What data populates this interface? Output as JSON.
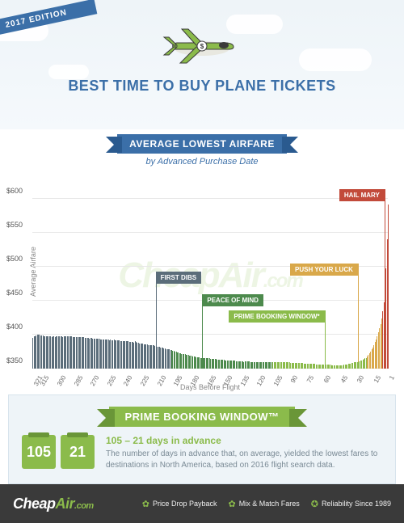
{
  "edition": "2017 EDITION",
  "title": "BEST TIME TO BUY PLANE TICKETS",
  "subtitle": "AVERAGE LOWEST AIRFARE",
  "byline": "by Advanced Purchase Date",
  "watermark_main": "CheapAir",
  "watermark_suffix": ".com",
  "chart": {
    "type": "bar",
    "ylabel": "Average Airfare",
    "xlabel": "Days Before Flight",
    "ylim": [
      350,
      600
    ],
    "yticks": [
      350,
      400,
      450,
      500,
      550,
      600
    ],
    "ytick_labels": [
      "$350",
      "$400",
      "$450",
      "$500",
      "$550",
      "$600"
    ],
    "xticks": [
      321,
      315,
      300,
      285,
      270,
      255,
      240,
      225,
      210,
      195,
      180,
      165,
      150,
      135,
      120,
      105,
      90,
      75,
      60,
      45,
      30,
      15,
      1
    ],
    "grid_color": "#e8e8e8",
    "zones": [
      {
        "name": "FIRST DIBS",
        "start": 321,
        "end": 197,
        "color": "#5b6d7a",
        "flag_x": 210,
        "flag_top": 120,
        "values": [
          395,
          398,
          398,
          399,
          400,
          400,
          400,
          399,
          399,
          399,
          398,
          398,
          398,
          398,
          398,
          398,
          398,
          397,
          398,
          398,
          397,
          398,
          398,
          398,
          398,
          398,
          398,
          397,
          398,
          398,
          398,
          398,
          398,
          398,
          398,
          398,
          397,
          397,
          397,
          397,
          397,
          397,
          397,
          396,
          396,
          396,
          396,
          395,
          395,
          395,
          395,
          394,
          395,
          395,
          394,
          394,
          394,
          394,
          394,
          394,
          394,
          393,
          393,
          393,
          393,
          393,
          393,
          393,
          393,
          392,
          393,
          392,
          392,
          393,
          392,
          392,
          392,
          392,
          392,
          391,
          391,
          391,
          391,
          390,
          390,
          390,
          390,
          389,
          389,
          389,
          389,
          388,
          390,
          389,
          388,
          388,
          387,
          387,
          387,
          387,
          386,
          386,
          386,
          386,
          385,
          385,
          385,
          384,
          384,
          384,
          383,
          383,
          382,
          382,
          382,
          381,
          381,
          381,
          380,
          380,
          379,
          379,
          379,
          378,
          377
        ]
      },
      {
        "name": "PEACE OF MIND",
        "start": 196,
        "end": 106,
        "color": "#4d8a4d",
        "flag_x": 168,
        "flag_top": 148,
        "values": [
          377,
          376,
          376,
          375,
          375,
          374,
          374,
          373,
          373,
          372,
          372,
          371,
          371,
          370,
          370,
          370,
          369,
          369,
          369,
          368,
          368,
          368,
          367,
          367,
          367,
          367,
          366,
          366,
          366,
          366,
          365,
          365,
          365,
          365,
          365,
          364,
          364,
          364,
          364,
          364,
          364,
          363,
          363,
          363,
          363,
          363,
          363,
          363,
          362,
          362,
          362,
          362,
          362,
          362,
          362,
          362,
          362,
          362,
          361,
          361,
          361,
          361,
          361,
          361,
          361,
          360,
          361,
          361,
          361,
          361,
          361,
          360,
          360,
          360,
          360,
          360,
          360,
          360,
          360,
          360,
          360,
          360,
          360,
          360,
          360,
          360,
          360,
          360,
          360,
          360,
          360
        ]
      },
      {
        "name": "PRIME BOOKING WINDOW*",
        "start": 105,
        "end": 21,
        "color": "#8bbb4b",
        "flag_x": 58,
        "flag_top": 168,
        "values": [
          360,
          360,
          359,
          359,
          359,
          359,
          359,
          359,
          359,
          359,
          359,
          359,
          359,
          359,
          359,
          359,
          358,
          358,
          358,
          358,
          358,
          358,
          358,
          358,
          358,
          358,
          358,
          358,
          357,
          357,
          357,
          357,
          357,
          357,
          357,
          357,
          357,
          357,
          357,
          356,
          356,
          356,
          356,
          356,
          356,
          356,
          356,
          356,
          356,
          356,
          356,
          356,
          356,
          355,
          355,
          355,
          355,
          355,
          355,
          355,
          355,
          355,
          355,
          355,
          356,
          356,
          356,
          356,
          357,
          357,
          357,
          358,
          358,
          359,
          359,
          359,
          360,
          360,
          361,
          362,
          362,
          363,
          364,
          365,
          366
        ]
      },
      {
        "name": "PUSH YOUR LUCK",
        "start": 20,
        "end": 7,
        "color": "#d9a84a",
        "flag_x": 28,
        "flag_top": 110,
        "values": [
          368,
          370,
          373,
          375,
          378,
          381,
          385,
          389,
          393,
          398,
          403,
          409,
          416,
          424
        ]
      },
      {
        "name": "HAIL MARY",
        "start": 6,
        "end": 1,
        "color": "#c24a3a",
        "flag_x": 4,
        "flag_top": 18,
        "values": [
          434,
          448,
          468,
          498,
          540,
          592
        ]
      }
    ]
  },
  "prime": {
    "ribbon": "PRIME BOOKING WINDOW™",
    "cal1": "105",
    "cal2": "21",
    "heading": "105 – 21 days in advance",
    "body": "The number of days in advance that, on average, yielded the lowest fares to destinations in North America, based on 2016 flight search data."
  },
  "footer": {
    "logo_cheap": "Cheap",
    "logo_air": "Air",
    "logo_com": ".com",
    "items": [
      {
        "icon": "✿",
        "label": "Price Drop Payback"
      },
      {
        "icon": "✿",
        "label": "Mix & Match Fares"
      },
      {
        "icon": "✪",
        "label": "Reliability Since 1989"
      }
    ]
  },
  "colors": {
    "blue": "#3b6fa8",
    "green": "#8bbb4b",
    "sky": "#eef4f8",
    "footer": "#3a3a3a"
  }
}
